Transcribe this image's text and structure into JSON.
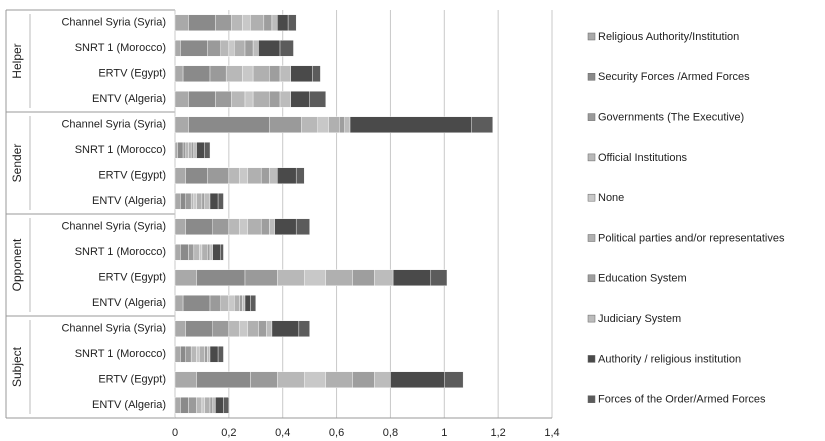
{
  "chart_data": {
    "type": "bar",
    "orientation": "horizontal",
    "stacked": true,
    "groups": [
      {
        "label": "Helper",
        "categories": [
          "Channel Syria (Syria)",
          "SNRT 1 (Morocco)",
          "ERTV (Egypt)",
          "ENTV (Algeria)"
        ]
      },
      {
        "label": "Sender",
        "categories": [
          "Channel Syria (Syria)",
          "SNRT 1 (Morocco)",
          "ERTV (Egypt)",
          "ENTV (Algeria)"
        ]
      },
      {
        "label": "Opponent",
        "categories": [
          "Channel Syria (Syria)",
          "SNRT 1 (Morocco)",
          "ERTV (Egypt)",
          "ENTV (Algeria)"
        ]
      },
      {
        "label": "Subject",
        "categories": [
          "Channel Syria (Syria)",
          "SNRT 1 (Morocco)",
          "ERTV (Egypt)",
          "ENTV (Algeria)"
        ]
      }
    ],
    "series": [
      {
        "name": "Religious Authority/Institution",
        "color": "#a9a9a9",
        "values": [
          0.05,
          0.02,
          0.03,
          0.05,
          0.05,
          0.01,
          0.04,
          0.02,
          0.04,
          0.02,
          0.08,
          0.03,
          0.04,
          0.02,
          0.08,
          0.02
        ]
      },
      {
        "name": "Security Forces /Armed Forces",
        "color": "#8a8a8a",
        "values": [
          0.1,
          0.1,
          0.1,
          0.1,
          0.3,
          0.02,
          0.08,
          0.02,
          0.1,
          0.03,
          0.18,
          0.1,
          0.1,
          0.02,
          0.2,
          0.03
        ]
      },
      {
        "name": "Governments (The Executive)",
        "color": "#9a9a9a",
        "values": [
          0.06,
          0.05,
          0.06,
          0.06,
          0.12,
          0.01,
          0.08,
          0.02,
          0.06,
          0.02,
          0.12,
          0.04,
          0.06,
          0.02,
          0.1,
          0.03
        ]
      },
      {
        "name": "Official Institutions",
        "color": "#b8b8b8",
        "values": [
          0.04,
          0.03,
          0.06,
          0.05,
          0.06,
          0.01,
          0.04,
          0.01,
          0.04,
          0.02,
          0.1,
          0.03,
          0.04,
          0.02,
          0.1,
          0.02
        ]
      },
      {
        "name": "None",
        "color": "#c8c8c8",
        "values": [
          0.03,
          0.02,
          0.04,
          0.03,
          0.04,
          0.0,
          0.03,
          0.01,
          0.03,
          0.01,
          0.08,
          0.02,
          0.03,
          0.01,
          0.08,
          0.01
        ]
      },
      {
        "name": "Political parties and/or representatives",
        "color": "#b0b0b0",
        "values": [
          0.05,
          0.04,
          0.06,
          0.06,
          0.04,
          0.01,
          0.05,
          0.02,
          0.05,
          0.02,
          0.1,
          0.02,
          0.04,
          0.02,
          0.1,
          0.02
        ]
      },
      {
        "name": "Education System",
        "color": "#9e9e9e",
        "values": [
          0.03,
          0.03,
          0.04,
          0.04,
          0.02,
          0.01,
          0.03,
          0.01,
          0.03,
          0.01,
          0.08,
          0.01,
          0.03,
          0.01,
          0.08,
          0.01
        ]
      },
      {
        "name": "Judiciary System",
        "color": "#bcbcbc",
        "values": [
          0.02,
          0.02,
          0.04,
          0.04,
          0.02,
          0.01,
          0.03,
          0.02,
          0.02,
          0.01,
          0.07,
          0.01,
          0.02,
          0.01,
          0.06,
          0.01
        ]
      },
      {
        "name": "Authority / religious institution",
        "color": "#4a4a4a",
        "values": [
          0.04,
          0.08,
          0.08,
          0.07,
          0.45,
          0.03,
          0.07,
          0.03,
          0.08,
          0.03,
          0.14,
          0.02,
          0.1,
          0.03,
          0.2,
          0.03
        ]
      },
      {
        "name": "Forces of the Order/Armed Forces",
        "color": "#5c5c5c",
        "values": [
          0.03,
          0.05,
          0.03,
          0.06,
          0.08,
          0.02,
          0.03,
          0.02,
          0.05,
          0.01,
          0.06,
          0.02,
          0.04,
          0.02,
          0.07,
          0.02
        ]
      }
    ],
    "xaxis": {
      "min": 0,
      "max": 1.4,
      "ticks": [
        "0",
        "0,2",
        "0,4",
        "0,6",
        "0,8",
        "1",
        "1,2",
        "1,4"
      ]
    },
    "grid": true,
    "legend_position": "right"
  }
}
